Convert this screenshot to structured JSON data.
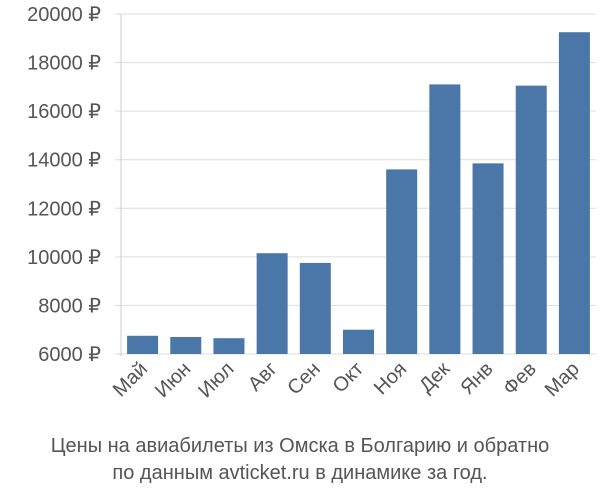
{
  "chart_data": {
    "type": "bar",
    "categories": [
      "Май",
      "Июн",
      "Июл",
      "Авг",
      "Сен",
      "Окт",
      "Ноя",
      "Дек",
      "Янв",
      "Фев",
      "Мар"
    ],
    "values": [
      6750,
      6700,
      6650,
      10150,
      9750,
      7000,
      13600,
      17100,
      13850,
      17050,
      19250
    ],
    "ylim": [
      6000,
      20000
    ],
    "yticks": [
      6000,
      8000,
      10000,
      12000,
      14000,
      16000,
      18000,
      20000
    ],
    "ytick_suffix": " ₽",
    "bar_color": "#4a76a8",
    "grid_color": "#dddddd",
    "grid": true,
    "legend": "none"
  },
  "caption": {
    "line1": "Цены на авиабилеты из Омска в Болгарию и обратно",
    "line2": "по данным avticket.ru в динамике за год."
  }
}
